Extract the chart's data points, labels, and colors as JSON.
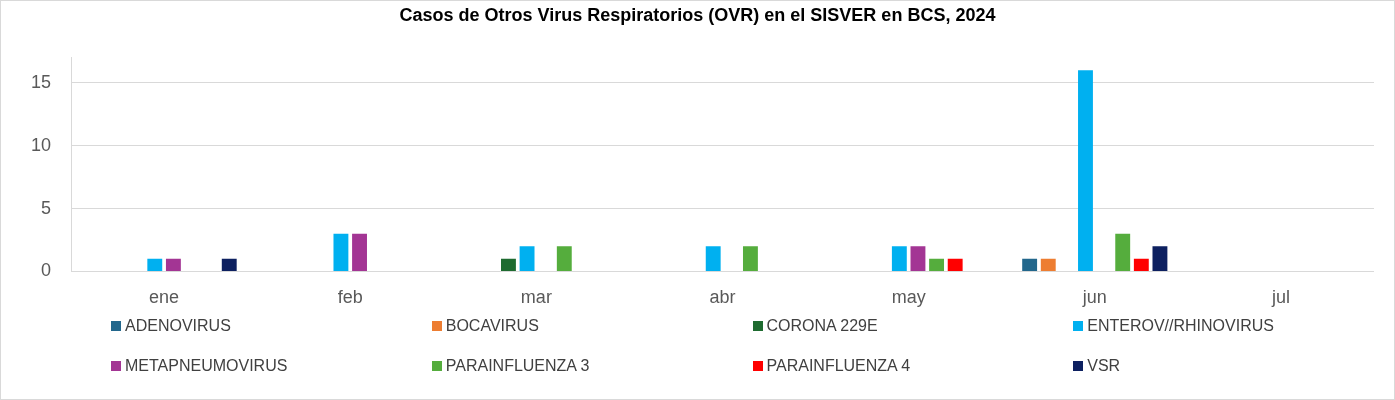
{
  "chart_data": {
    "type": "bar",
    "title": "Casos de Otros Virus Respiratorios (OVR) en el SISVER en BCS, 2024",
    "categories": [
      "ene",
      "feb",
      "mar",
      "abr",
      "may",
      "jun",
      "jul"
    ],
    "series": [
      {
        "name": "ADENOVIRUS",
        "color": "#22678c",
        "values": [
          0,
          0,
          0,
          0,
          0,
          1,
          0
        ]
      },
      {
        "name": "BOCAVIRUS",
        "color": "#ed7d31",
        "values": [
          0,
          0,
          0,
          0,
          0,
          1,
          0
        ]
      },
      {
        "name": "CORONA 229E",
        "color": "#1e6b30",
        "values": [
          0,
          0,
          1,
          0,
          0,
          0,
          0
        ]
      },
      {
        "name": "ENTEROV//RHINOVIRUS",
        "color": "#00b0f0",
        "values": [
          1,
          3,
          2,
          2,
          2,
          16,
          0
        ]
      },
      {
        "name": "METAPNEUMOVIRUS",
        "color": "#a33594",
        "values": [
          1,
          3,
          0,
          0,
          2,
          0,
          0
        ]
      },
      {
        "name": "PARAINFLUENZA 3",
        "color": "#55ad3d",
        "values": [
          0,
          0,
          2,
          2,
          1,
          3,
          0
        ]
      },
      {
        "name": "PARAINFLUENZA 4",
        "color": "#ff0000",
        "values": [
          0,
          0,
          0,
          0,
          1,
          1,
          0
        ]
      },
      {
        "name": "VSR",
        "color": "#0d2060",
        "values": [
          1,
          0,
          0,
          0,
          0,
          2,
          0
        ]
      }
    ],
    "ylim": [
      0,
      17
    ],
    "yticks": [
      0,
      5,
      10,
      15
    ],
    "grid": "y",
    "legend": "bottom"
  }
}
